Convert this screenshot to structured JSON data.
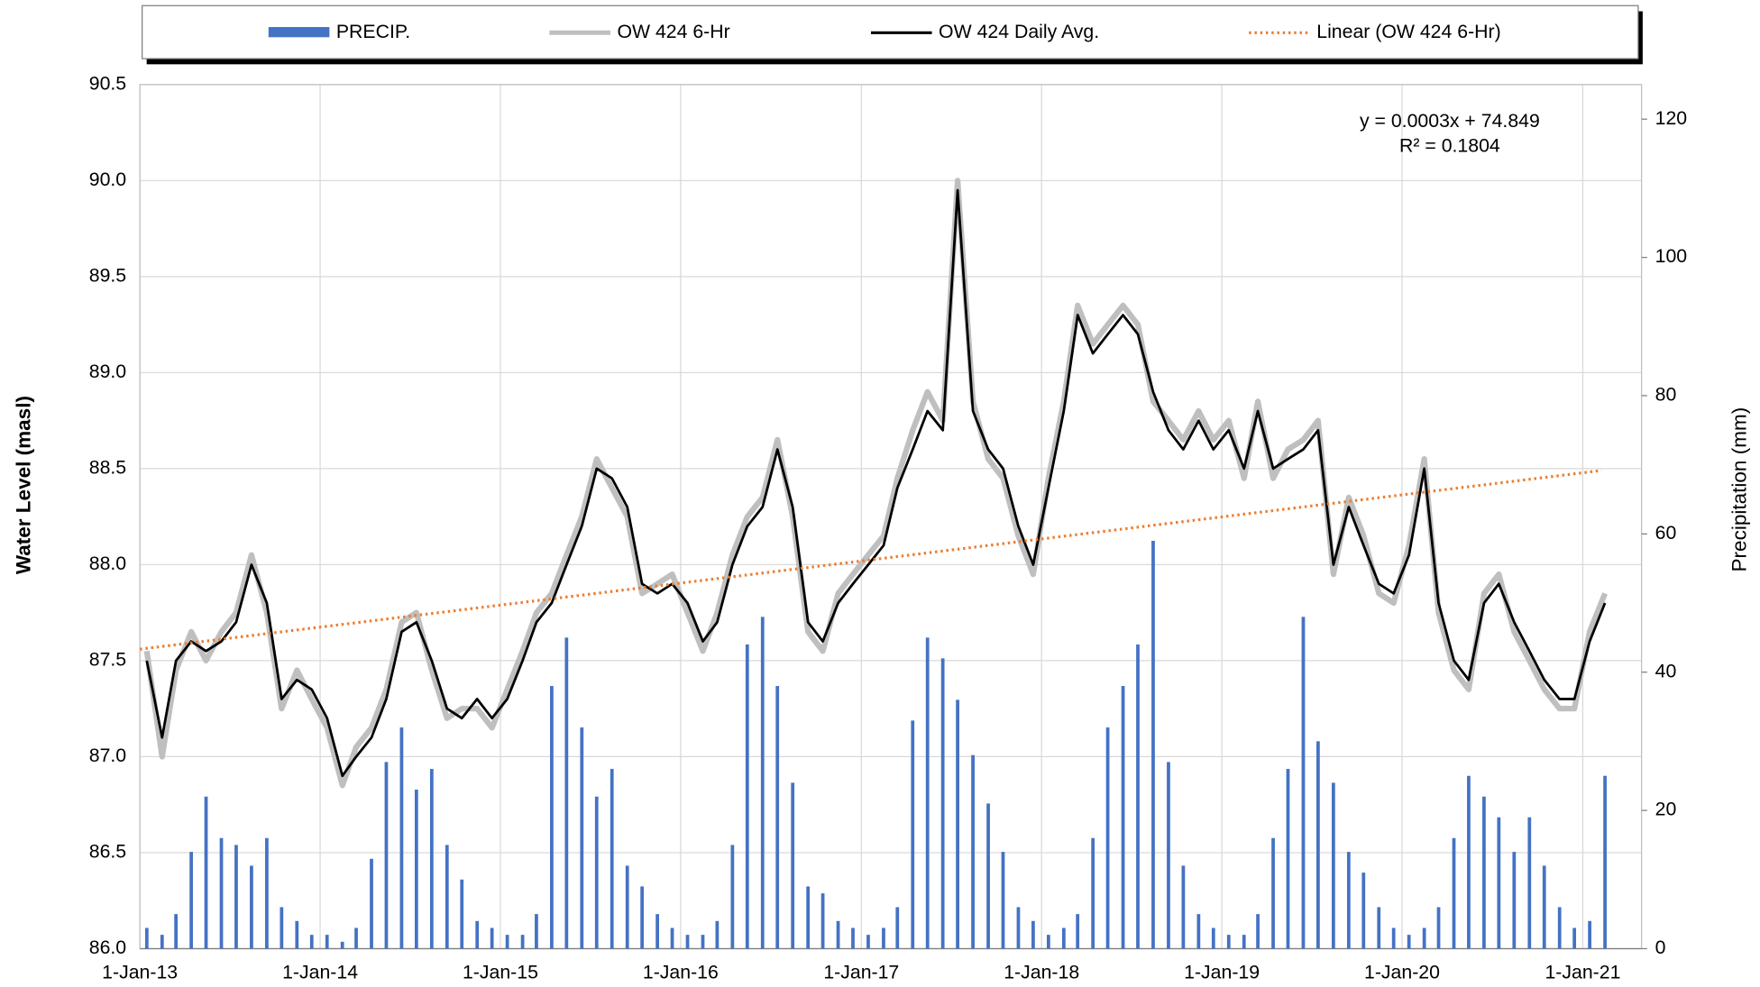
{
  "chart_data": {
    "type": "line",
    "ylabel": "Water Level (masl)",
    "y2label": "Precipitation (mm)",
    "legend": "top",
    "grid": true,
    "annotations": [
      "y = 0.0003x + 74.849",
      "R² = 0.1804"
    ],
    "ylim": [
      86,
      90.5
    ],
    "yticks": [
      {
        "value": 86,
        "label": "86.0"
      },
      86.5,
      {
        "value": 87,
        "label": "87.0"
      },
      87.5,
      {
        "value": 88,
        "label": "88.0"
      },
      88.5,
      {
        "value": 89,
        "label": "89.0"
      },
      89.5,
      {
        "value": 90,
        "label": "90.0"
      },
      90.5
    ],
    "y2lim": [
      0,
      125
    ],
    "y2ticks": [
      0,
      20,
      40,
      60,
      80,
      100,
      120
    ],
    "xlim": [
      "2013-01-01",
      "2021-04-30"
    ],
    "xticks": [
      {
        "value": "2013-01-01",
        "label": "1-Jan-13"
      },
      {
        "value": "2014-01-01",
        "label": "1-Jan-14"
      },
      {
        "value": "2015-01-01",
        "label": "1-Jan-15"
      },
      {
        "value": "2016-01-01",
        "label": "1-Jan-16"
      },
      {
        "value": "2017-01-01",
        "label": "1-Jan-17"
      },
      {
        "value": "2018-01-01",
        "label": "1-Jan-18"
      },
      {
        "value": "2019-01-01",
        "label": "1-Jan-19"
      },
      {
        "value": "2020-01-01",
        "label": "1-Jan-20"
      },
      {
        "value": "2021-01-01",
        "label": "1-Jan-21"
      }
    ],
    "x": [
      "2013-01-15",
      "2013-02-15",
      "2013-03-15",
      "2013-04-15",
      "2013-05-15",
      "2013-06-15",
      "2013-07-15",
      "2013-08-15",
      "2013-09-15",
      "2013-10-15",
      "2013-11-15",
      "2013-12-15",
      "2014-01-15",
      "2014-02-15",
      "2014-03-15",
      "2014-04-15",
      "2014-05-15",
      "2014-06-15",
      "2014-07-15",
      "2014-08-15",
      "2014-09-15",
      "2014-10-15",
      "2014-11-15",
      "2014-12-15",
      "2015-01-15",
      "2015-02-15",
      "2015-03-15",
      "2015-04-15",
      "2015-05-15",
      "2015-06-15",
      "2015-07-15",
      "2015-08-15",
      "2015-09-15",
      "2015-10-15",
      "2015-11-15",
      "2015-12-15",
      "2016-01-15",
      "2016-02-15",
      "2016-03-15",
      "2016-04-15",
      "2016-05-15",
      "2016-06-15",
      "2016-07-15",
      "2016-08-15",
      "2016-09-15",
      "2016-10-15",
      "2016-11-15",
      "2016-12-15",
      "2017-01-15",
      "2017-02-15",
      "2017-03-15",
      "2017-04-15",
      "2017-05-15",
      "2017-06-15",
      "2017-07-15",
      "2017-08-15",
      "2017-09-15",
      "2017-10-15",
      "2017-11-15",
      "2017-12-15",
      "2018-01-15",
      "2018-02-15",
      "2018-03-15",
      "2018-04-15",
      "2018-05-15",
      "2018-06-15",
      "2018-07-15",
      "2018-08-15",
      "2018-09-15",
      "2018-10-15",
      "2018-11-15",
      "2018-12-15",
      "2019-01-15",
      "2019-02-15",
      "2019-03-15",
      "2019-04-15",
      "2019-05-15",
      "2019-06-15",
      "2019-07-15",
      "2019-08-15",
      "2019-09-15",
      "2019-10-15",
      "2019-11-15",
      "2019-12-15",
      "2020-01-15",
      "2020-02-15",
      "2020-03-15",
      "2020-04-15",
      "2020-05-15",
      "2020-06-15",
      "2020-07-15",
      "2020-08-15",
      "2020-09-15",
      "2020-10-15",
      "2020-11-15",
      "2020-12-15",
      "2021-01-15",
      "2021-02-15"
    ],
    "series": [
      {
        "name": "PRECIP.",
        "type": "bar",
        "axis": "y2",
        "color": "#4472c4",
        "values": [
          3,
          2,
          5,
          14,
          22,
          16,
          15,
          12,
          16,
          6,
          4,
          2,
          2,
          1,
          3,
          13,
          27,
          32,
          23,
          26,
          15,
          10,
          4,
          3,
          2,
          2,
          5,
          38,
          45,
          32,
          22,
          26,
          12,
          9,
          5,
          3,
          2,
          2,
          4,
          15,
          44,
          48,
          38,
          24,
          9,
          8,
          4,
          3,
          2,
          3,
          6,
          33,
          45,
          42,
          36,
          28,
          21,
          14,
          6,
          4,
          2,
          3,
          5,
          16,
          32,
          38,
          44,
          59,
          27,
          12,
          5,
          3,
          2,
          2,
          5,
          16,
          26,
          48,
          30,
          24,
          14,
          11,
          6,
          3,
          2,
          3,
          6,
          16,
          25,
          22,
          19,
          14,
          19,
          12,
          6,
          3,
          4,
          25
        ]
      },
      {
        "name": "OW 424 6-Hr",
        "type": "line",
        "color": "#bfbfbf",
        "values": [
          87.55,
          87.0,
          87.45,
          87.65,
          87.5,
          87.65,
          87.75,
          88.05,
          87.75,
          87.25,
          87.45,
          87.3,
          87.15,
          86.85,
          87.05,
          87.15,
          87.35,
          87.7,
          87.75,
          87.45,
          87.2,
          87.25,
          87.25,
          87.15,
          87.35,
          87.55,
          87.75,
          87.85,
          88.05,
          88.25,
          88.55,
          88.4,
          88.25,
          87.85,
          87.9,
          87.95,
          87.75,
          87.55,
          87.75,
          88.05,
          88.25,
          88.35,
          88.65,
          88.25,
          87.65,
          87.55,
          87.85,
          87.95,
          88.05,
          88.15,
          88.45,
          88.7,
          88.9,
          88.75,
          90.0,
          88.85,
          88.55,
          88.45,
          88.15,
          87.95,
          88.45,
          88.85,
          89.35,
          89.15,
          89.25,
          89.35,
          89.25,
          88.85,
          88.75,
          88.65,
          88.8,
          88.65,
          88.75,
          88.45,
          88.85,
          88.45,
          88.6,
          88.65,
          88.75,
          87.95,
          88.35,
          88.15,
          87.85,
          87.8,
          88.1,
          88.55,
          87.75,
          87.45,
          87.35,
          87.85,
          87.95,
          87.65,
          87.5,
          87.35,
          87.25,
          87.25,
          87.65,
          87.85
        ]
      },
      {
        "name": "OW 424 Daily Avg.",
        "type": "line",
        "color": "#000000",
        "values": [
          87.5,
          87.1,
          87.5,
          87.6,
          87.55,
          87.6,
          87.7,
          88.0,
          87.8,
          87.3,
          87.4,
          87.35,
          87.2,
          86.9,
          87.0,
          87.1,
          87.3,
          87.65,
          87.7,
          87.5,
          87.25,
          87.2,
          87.3,
          87.2,
          87.3,
          87.5,
          87.7,
          87.8,
          88.0,
          88.2,
          88.5,
          88.45,
          88.3,
          87.9,
          87.85,
          87.9,
          87.8,
          87.6,
          87.7,
          88.0,
          88.2,
          88.3,
          88.6,
          88.3,
          87.7,
          87.6,
          87.8,
          87.9,
          88.0,
          88.1,
          88.4,
          88.6,
          88.8,
          88.7,
          89.95,
          88.8,
          88.6,
          88.5,
          88.2,
          88.0,
          88.4,
          88.8,
          89.3,
          89.1,
          89.2,
          89.3,
          89.2,
          88.9,
          88.7,
          88.6,
          88.75,
          88.6,
          88.7,
          88.5,
          88.8,
          88.5,
          88.55,
          88.6,
          88.7,
          88.0,
          88.3,
          88.1,
          87.9,
          87.85,
          88.05,
          88.5,
          87.8,
          87.5,
          87.4,
          87.8,
          87.9,
          87.7,
          87.55,
          87.4,
          87.3,
          87.3,
          87.6,
          87.8
        ]
      },
      {
        "name": "Linear (OW 424 6-Hr)",
        "type": "line",
        "dashed": true,
        "color": "#ed7d31",
        "x": [
          "2013-01-01",
          "2021-02-08"
        ],
        "values": [
          87.56,
          88.49
        ]
      }
    ]
  }
}
